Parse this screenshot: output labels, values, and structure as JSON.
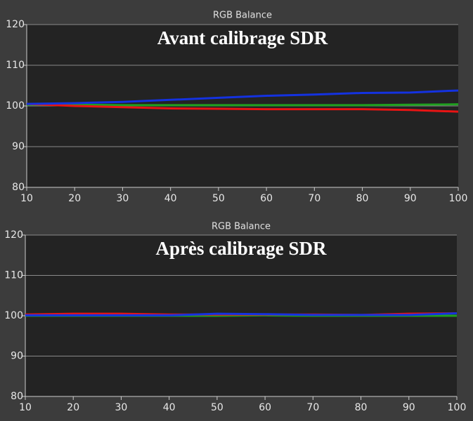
{
  "chart_data": [
    {
      "type": "line",
      "title": "RGB Balance",
      "annotation": "Avant calibrage SDR",
      "x": [
        10,
        20,
        30,
        40,
        50,
        60,
        70,
        80,
        90,
        100
      ],
      "xlim": [
        10,
        100
      ],
      "xticks": [
        10,
        20,
        30,
        40,
        50,
        60,
        70,
        80,
        90,
        100
      ],
      "ylim": [
        80,
        120
      ],
      "yticks": [
        80,
        90,
        100,
        110,
        120
      ],
      "grid": true,
      "series": [
        {
          "color": "#1fa01f",
          "values": [
            100.3,
            100.3,
            100.2,
            100.2,
            100.2,
            100.2,
            100.2,
            100.2,
            100.3,
            100.4
          ]
        },
        {
          "color": "#e81414",
          "values": [
            100.5,
            100,
            99.7,
            99.4,
            99.3,
            99.2,
            99.2,
            99.2,
            99,
            98.6
          ]
        },
        {
          "color": "#1432e0",
          "values": [
            100.5,
            100.7,
            101,
            101.5,
            102,
            102.5,
            102.8,
            103.2,
            103.3,
            103.8
          ]
        }
      ]
    },
    {
      "type": "line",
      "title": "RGB Balance",
      "annotation": "Après calibrage SDR",
      "x": [
        10,
        20,
        30,
        40,
        50,
        60,
        70,
        80,
        90,
        100
      ],
      "xlim": [
        10,
        100
      ],
      "xticks": [
        10,
        20,
        30,
        40,
        50,
        60,
        70,
        80,
        90,
        100
      ],
      "ylim": [
        80,
        120
      ],
      "yticks": [
        80,
        90,
        100,
        110,
        120
      ],
      "grid": true,
      "series": [
        {
          "color": "#1fa01f",
          "values": [
            100,
            100,
            100,
            100,
            100,
            100.1,
            100,
            100,
            100,
            100
          ]
        },
        {
          "color": "#e81414",
          "values": [
            100.3,
            100.5,
            100.5,
            100.3,
            100.3,
            100.3,
            100.3,
            100.2,
            100.5,
            100.6
          ]
        },
        {
          "color": "#1432e0",
          "values": [
            100.1,
            100.1,
            100.1,
            100.1,
            100.5,
            100.4,
            100.2,
            100.2,
            100.2,
            100.6
          ]
        }
      ]
    }
  ]
}
